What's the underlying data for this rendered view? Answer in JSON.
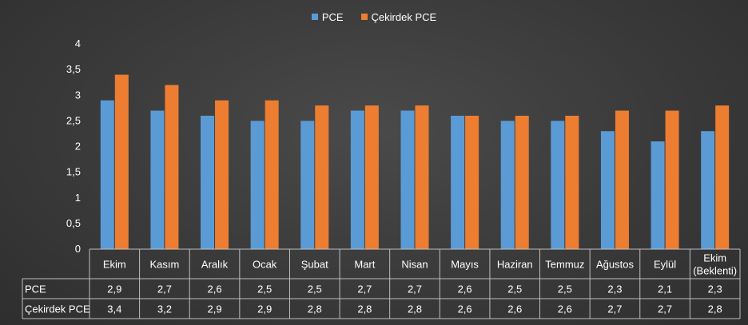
{
  "chart_data": {
    "type": "bar",
    "title": "",
    "xlabel": "",
    "ylabel": "",
    "categories": [
      "Ekim",
      "Kasım",
      "Aralık",
      "Ocak",
      "Şubat",
      "Mart",
      "Nisan",
      "Mayıs",
      "Haziran",
      "Temmuz",
      "Ağustos",
      "Eylül",
      "Ekim (Beklenti)"
    ],
    "category_lines": [
      [
        "Ekim"
      ],
      [
        "Kasım"
      ],
      [
        "Aralık"
      ],
      [
        "Ocak"
      ],
      [
        "Şubat"
      ],
      [
        "Mart"
      ],
      [
        "Nisan"
      ],
      [
        "Mayıs"
      ],
      [
        "Haziran"
      ],
      [
        "Temmuz"
      ],
      [
        "Ağustos"
      ],
      [
        "Eylül"
      ],
      [
        "Ekim",
        "(Beklenti)"
      ]
    ],
    "series": [
      {
        "name": "PCE",
        "color": "#5b9bd5",
        "values": [
          2.9,
          2.7,
          2.6,
          2.5,
          2.5,
          2.7,
          2.7,
          2.6,
          2.5,
          2.5,
          2.3,
          2.1,
          2.3
        ],
        "labels": [
          "2,9",
          "2,7",
          "2,6",
          "2,5",
          "2,5",
          "2,7",
          "2,7",
          "2,6",
          "2,5",
          "2,5",
          "2,3",
          "2,1",
          "2,3"
        ]
      },
      {
        "name": "Çekirdek PCE",
        "color": "#ed7d31",
        "values": [
          3.4,
          3.2,
          2.9,
          2.9,
          2.8,
          2.8,
          2.8,
          2.6,
          2.6,
          2.6,
          2.7,
          2.7,
          2.8
        ],
        "labels": [
          "3,4",
          "3,2",
          "2,9",
          "2,9",
          "2,8",
          "2,8",
          "2,8",
          "2,6",
          "2,6",
          "2,6",
          "2,7",
          "2,7",
          "2,8"
        ]
      }
    ],
    "ylim": [
      0,
      4
    ],
    "yticks": [
      0,
      0.5,
      1,
      1.5,
      2,
      2.5,
      3,
      3.5,
      4
    ],
    "ytick_labels": [
      "0",
      "0,5",
      "1",
      "1,5",
      "2",
      "2,5",
      "3",
      "3,5",
      "4"
    ],
    "grid": false,
    "legend": "top",
    "data_table": true
  }
}
